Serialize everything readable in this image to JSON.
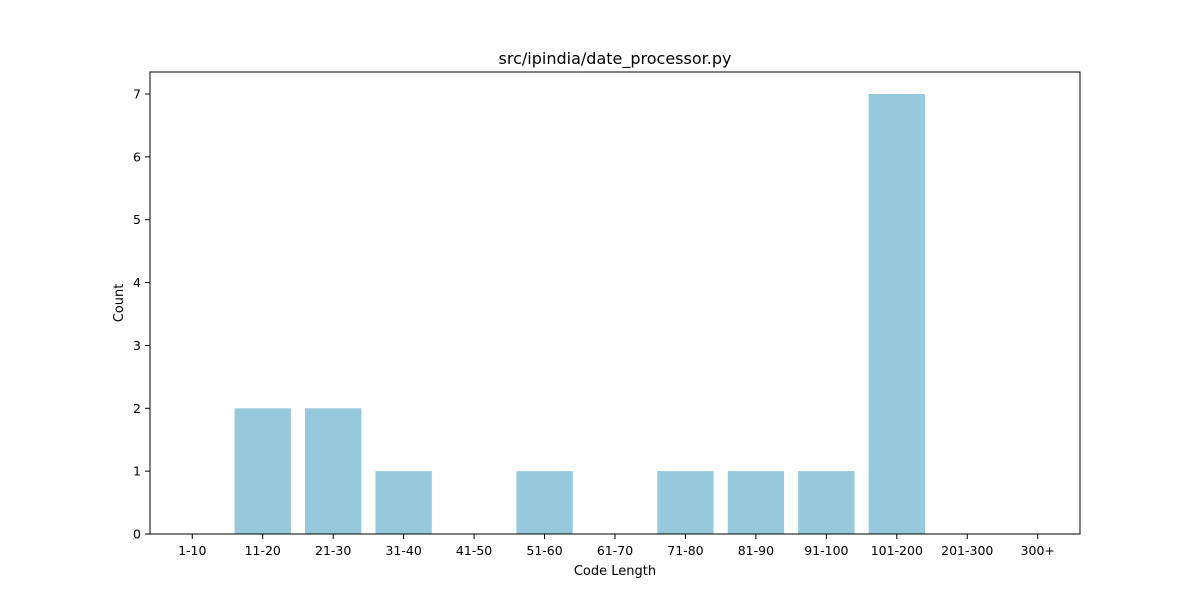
{
  "chart_data": {
    "type": "bar",
    "title": "src/ipindia/date_processor.py",
    "xlabel": "Code Length",
    "ylabel": "Count",
    "categories": [
      "1-10",
      "11-20",
      "21-30",
      "31-40",
      "41-50",
      "51-60",
      "61-70",
      "71-80",
      "81-90",
      "91-100",
      "101-200",
      "201-300",
      "300+"
    ],
    "values": [
      0,
      2,
      2,
      1,
      0,
      1,
      0,
      1,
      1,
      1,
      7,
      0,
      0
    ],
    "ylim": [
      0,
      7.35
    ],
    "yticks": [
      0,
      1,
      2,
      3,
      4,
      5,
      6,
      7
    ],
    "grid": false,
    "bar_color": "#96c9dc"
  }
}
